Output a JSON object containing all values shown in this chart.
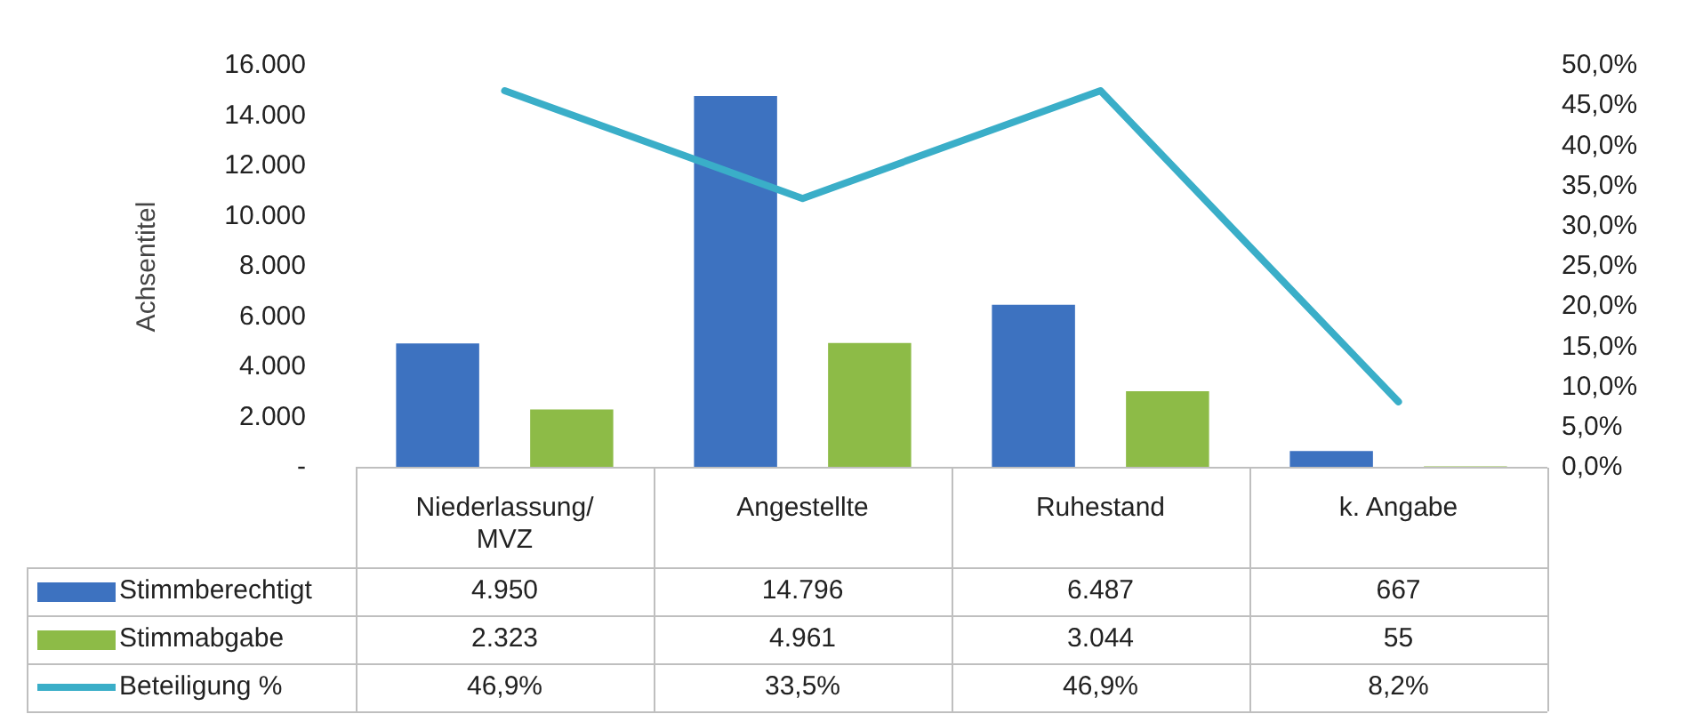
{
  "chart_data": {
    "type": "bar",
    "ylabel": "Achsentitel",
    "categories": [
      "Niederlassung/MVZ",
      "Angestellte",
      "Ruhestand",
      "k. Angabe"
    ],
    "series": [
      {
        "name": "Stimmberechtigt",
        "color": "#3d72c0",
        "values": [
          4950,
          14796,
          6487,
          667
        ],
        "value_labels": [
          "4.950",
          "14.796",
          "6.487",
          "667"
        ]
      },
      {
        "name": "Stimmabgabe",
        "color": "#8dbb47",
        "values": [
          2323,
          4961,
          3044,
          55
        ],
        "value_labels": [
          "2.323",
          "4.961",
          "3.044",
          "55"
        ]
      },
      {
        "name": "Beteiligung %",
        "type": "line",
        "axis": "y2",
        "color": "#3aaec8",
        "values": [
          46.9,
          33.5,
          46.9,
          8.2
        ],
        "value_labels": [
          "46,9%",
          "33,5%",
          "46,9%",
          "8,2%"
        ]
      }
    ],
    "ylim": [
      0,
      16000
    ],
    "yticks": [
      {
        "value": 0,
        "label": "-"
      },
      {
        "value": 2000,
        "label": "2.000"
      },
      {
        "value": 4000,
        "label": "4.000"
      },
      {
        "value": 6000,
        "label": "6.000"
      },
      {
        "value": 8000,
        "label": "8.000"
      },
      {
        "value": 10000,
        "label": "10.000"
      },
      {
        "value": 12000,
        "label": "12.000"
      },
      {
        "value": 14000,
        "label": "14.000"
      },
      {
        "value": 16000,
        "label": "16.000"
      }
    ],
    "y2lim": [
      0,
      50
    ],
    "y2ticks": [
      {
        "value": 0,
        "label": "0,0%"
      },
      {
        "value": 5,
        "label": "5,0%"
      },
      {
        "value": 10,
        "label": "10,0%"
      },
      {
        "value": 15,
        "label": "15,0%"
      },
      {
        "value": 20,
        "label": "20,0%"
      },
      {
        "value": 25,
        "label": "25,0%"
      },
      {
        "value": 30,
        "label": "30,0%"
      },
      {
        "value": 35,
        "label": "35,0%"
      },
      {
        "value": 40,
        "label": "40,0%"
      },
      {
        "value": 45,
        "label": "45,0%"
      },
      {
        "value": 50,
        "label": "50,0%"
      }
    ],
    "grid": false,
    "legend": "bottom left",
    "marker": "none",
    "line_style": "solid"
  }
}
